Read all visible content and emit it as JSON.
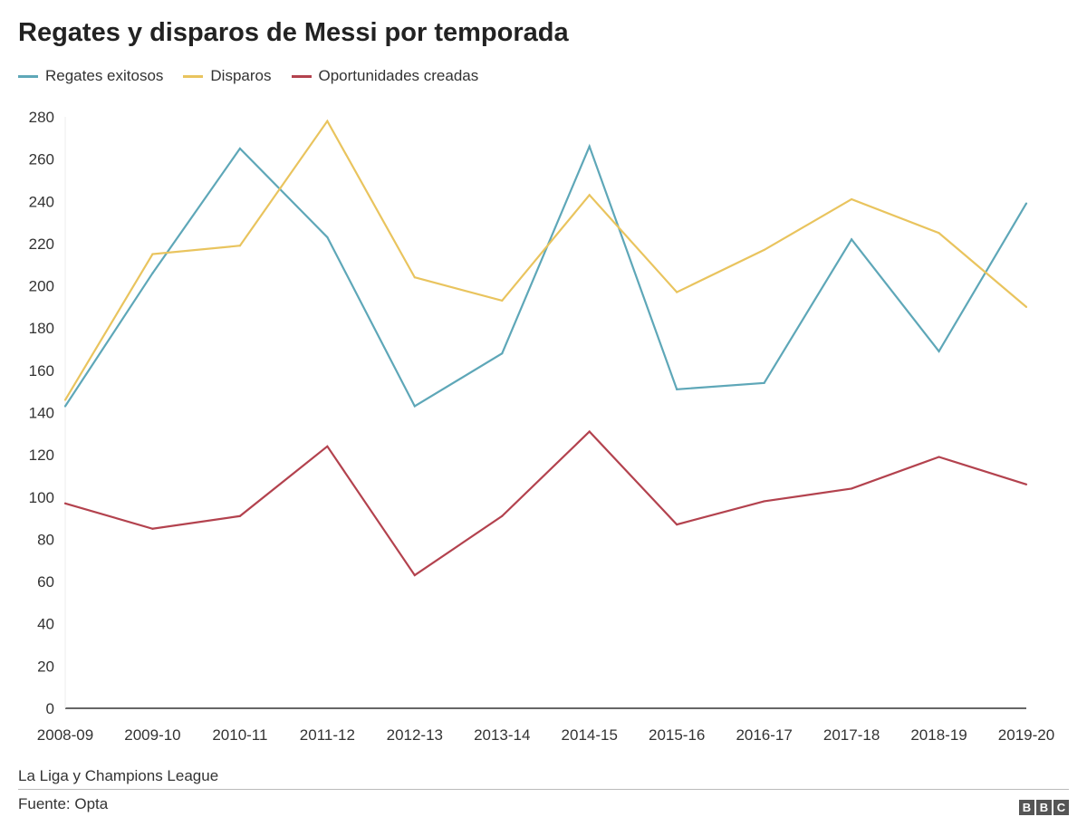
{
  "chart_data": {
    "type": "line",
    "title": "Regates y disparos de Messi por temporada",
    "xlabel": "",
    "ylabel": "",
    "ylim": [
      0,
      280
    ],
    "yticks": [
      0,
      20,
      40,
      60,
      80,
      100,
      120,
      140,
      160,
      180,
      200,
      220,
      240,
      260,
      280
    ],
    "grid": false,
    "legend_position": "top-left",
    "categories": [
      "2008-09",
      "2009-10",
      "2010-11",
      "2011-12",
      "2012-13",
      "2013-14",
      "2014-15",
      "2015-16",
      "2016-17",
      "2017-18",
      "2018-19",
      "2019-20"
    ],
    "series": [
      {
        "name": "Regates exitosos",
        "color": "#5ea7b8",
        "values": [
          143,
          206,
          265,
          223,
          143,
          168,
          266,
          151,
          154,
          222,
          169,
          239
        ]
      },
      {
        "name": "Disparos",
        "color": "#e9c45e",
        "values": [
          146,
          215,
          219,
          278,
          204,
          193,
          243,
          197,
          217,
          241,
          225,
          190
        ]
      },
      {
        "name": "Oportunidades creadas",
        "color": "#b3424e",
        "values": [
          97,
          85,
          91,
          124,
          63,
          91,
          131,
          87,
          98,
          104,
          119,
          106
        ]
      }
    ]
  },
  "footer": {
    "note": "La Liga y Champions League",
    "source": "Fuente: Opta",
    "logo": "BBC"
  }
}
